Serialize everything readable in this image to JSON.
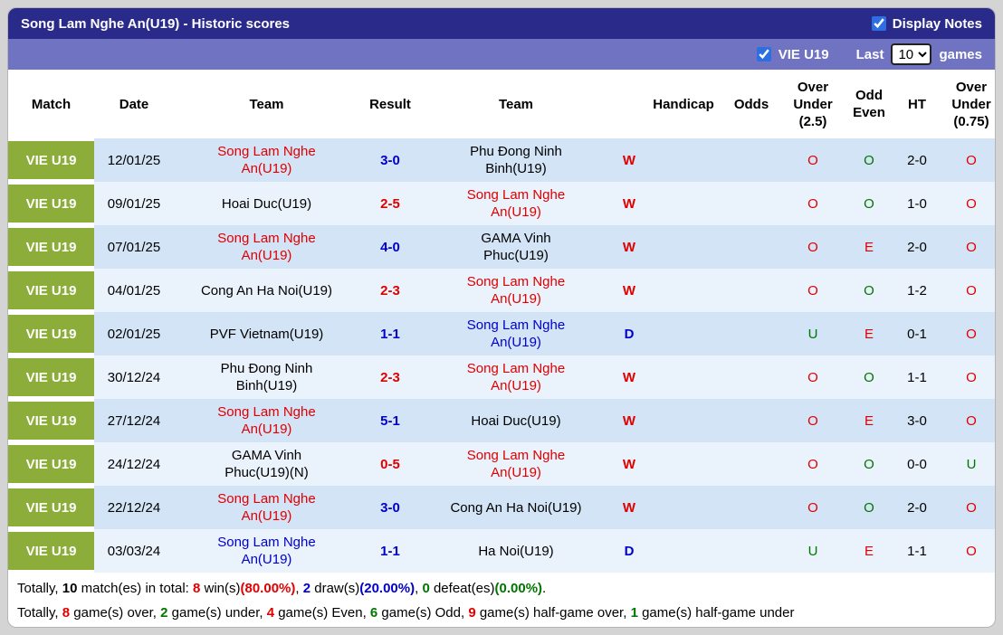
{
  "colors": {
    "header_bg": "#2a2a8a",
    "filter_bg": "#7073c2",
    "league_badge_bg": "#8cad3a",
    "row_odd_bg": "#d2e4f6",
    "row_even_bg": "#eaf2fc",
    "red": "#e00000",
    "blue": "#0000cd",
    "green": "#007500"
  },
  "title_bar": {
    "title": "Song Lam Nghe An(U19) - Historic scores",
    "display_notes": {
      "label": "Display Notes",
      "checked": true
    }
  },
  "filter_bar": {
    "league_filter": {
      "label": "VIE U19",
      "checked": true
    },
    "last_label": "Last",
    "games_select": {
      "value": "10",
      "options": [
        "10"
      ]
    },
    "games_label": "games"
  },
  "table": {
    "headers": {
      "match": "Match",
      "date": "Date",
      "home_team": "Team",
      "result": "Result",
      "away_team": "Team",
      "wd": "",
      "handicap": "Handicap",
      "odds": "Odds",
      "over_under_25": "Over Under (2.5)",
      "odd_even": "Odd Even",
      "ht": "HT",
      "over_under_075": "Over Under (0.75)"
    },
    "rows": [
      {
        "league": "VIE U19",
        "date": "12/01/25",
        "home": {
          "name": "Song Lam Nghe An(U19)",
          "color": "red"
        },
        "result": {
          "text": "3-0",
          "color": "blue"
        },
        "away": {
          "name": "Phu Đong Ninh Binh(U19)",
          "color": "black"
        },
        "wd": {
          "text": "W",
          "color": "red"
        },
        "handicap": "",
        "odds": "",
        "over_under_25": {
          "text": "O",
          "color": "red"
        },
        "odd_even": {
          "text": "O",
          "color": "green"
        },
        "ht": "2-0",
        "over_under_075": {
          "text": "O",
          "color": "red"
        }
      },
      {
        "league": "VIE U19",
        "date": "09/01/25",
        "home": {
          "name": "Hoai Duc(U19)",
          "color": "black"
        },
        "result": {
          "text": "2-5",
          "color": "red"
        },
        "away": {
          "name": "Song Lam Nghe An(U19)",
          "color": "red"
        },
        "wd": {
          "text": "W",
          "color": "red"
        },
        "handicap": "",
        "odds": "",
        "over_under_25": {
          "text": "O",
          "color": "red"
        },
        "odd_even": {
          "text": "O",
          "color": "green"
        },
        "ht": "1-0",
        "over_under_075": {
          "text": "O",
          "color": "red"
        }
      },
      {
        "league": "VIE U19",
        "date": "07/01/25",
        "home": {
          "name": "Song Lam Nghe An(U19)",
          "color": "red"
        },
        "result": {
          "text": "4-0",
          "color": "blue"
        },
        "away": {
          "name": "GAMA Vinh Phuc(U19)",
          "color": "black"
        },
        "wd": {
          "text": "W",
          "color": "red"
        },
        "handicap": "",
        "odds": "",
        "over_under_25": {
          "text": "O",
          "color": "red"
        },
        "odd_even": {
          "text": "E",
          "color": "red"
        },
        "ht": "2-0",
        "over_under_075": {
          "text": "O",
          "color": "red"
        }
      },
      {
        "league": "VIE U19",
        "date": "04/01/25",
        "home": {
          "name": "Cong An Ha Noi(U19)",
          "color": "black"
        },
        "result": {
          "text": "2-3",
          "color": "red"
        },
        "away": {
          "name": "Song Lam Nghe An(U19)",
          "color": "red"
        },
        "wd": {
          "text": "W",
          "color": "red"
        },
        "handicap": "",
        "odds": "",
        "over_under_25": {
          "text": "O",
          "color": "red"
        },
        "odd_even": {
          "text": "O",
          "color": "green"
        },
        "ht": "1-2",
        "over_under_075": {
          "text": "O",
          "color": "red"
        }
      },
      {
        "league": "VIE U19",
        "date": "02/01/25",
        "home": {
          "name": "PVF Vietnam(U19)",
          "color": "black"
        },
        "result": {
          "text": "1-1",
          "color": "blue"
        },
        "away": {
          "name": "Song Lam Nghe An(U19)",
          "color": "blue"
        },
        "wd": {
          "text": "D",
          "color": "blue"
        },
        "handicap": "",
        "odds": "",
        "over_under_25": {
          "text": "U",
          "color": "green"
        },
        "odd_even": {
          "text": "E",
          "color": "red"
        },
        "ht": "0-1",
        "over_under_075": {
          "text": "O",
          "color": "red"
        }
      },
      {
        "league": "VIE U19",
        "date": "30/12/24",
        "home": {
          "name": "Phu Đong Ninh Binh(U19)",
          "color": "black"
        },
        "result": {
          "text": "2-3",
          "color": "red"
        },
        "away": {
          "name": "Song Lam Nghe An(U19)",
          "color": "red"
        },
        "wd": {
          "text": "W",
          "color": "red"
        },
        "handicap": "",
        "odds": "",
        "over_under_25": {
          "text": "O",
          "color": "red"
        },
        "odd_even": {
          "text": "O",
          "color": "green"
        },
        "ht": "1-1",
        "over_under_075": {
          "text": "O",
          "color": "red"
        }
      },
      {
        "league": "VIE U19",
        "date": "27/12/24",
        "home": {
          "name": "Song Lam Nghe An(U19)",
          "color": "red"
        },
        "result": {
          "text": "5-1",
          "color": "blue"
        },
        "away": {
          "name": "Hoai Duc(U19)",
          "color": "black"
        },
        "wd": {
          "text": "W",
          "color": "red"
        },
        "handicap": "",
        "odds": "",
        "over_under_25": {
          "text": "O",
          "color": "red"
        },
        "odd_even": {
          "text": "E",
          "color": "red"
        },
        "ht": "3-0",
        "over_under_075": {
          "text": "O",
          "color": "red"
        }
      },
      {
        "league": "VIE U19",
        "date": "24/12/24",
        "home": {
          "name": "GAMA Vinh Phuc(U19)(N)",
          "color": "black"
        },
        "result": {
          "text": "0-5",
          "color": "red"
        },
        "away": {
          "name": "Song Lam Nghe An(U19)",
          "color": "red"
        },
        "wd": {
          "text": "W",
          "color": "red"
        },
        "handicap": "",
        "odds": "",
        "over_under_25": {
          "text": "O",
          "color": "red"
        },
        "odd_even": {
          "text": "O",
          "color": "green"
        },
        "ht": "0-0",
        "over_under_075": {
          "text": "U",
          "color": "green"
        }
      },
      {
        "league": "VIE U19",
        "date": "22/12/24",
        "home": {
          "name": "Song Lam Nghe An(U19)",
          "color": "red"
        },
        "result": {
          "text": "3-0",
          "color": "blue"
        },
        "away": {
          "name": "Cong An Ha Noi(U19)",
          "color": "black"
        },
        "wd": {
          "text": "W",
          "color": "red"
        },
        "handicap": "",
        "odds": "",
        "over_under_25": {
          "text": "O",
          "color": "red"
        },
        "odd_even": {
          "text": "O",
          "color": "green"
        },
        "ht": "2-0",
        "over_under_075": {
          "text": "O",
          "color": "red"
        }
      },
      {
        "league": "VIE U19",
        "date": "03/03/24",
        "home": {
          "name": "Song Lam Nghe An(U19)",
          "color": "blue"
        },
        "result": {
          "text": "1-1",
          "color": "blue"
        },
        "away": {
          "name": "Ha Noi(U19)",
          "color": "black"
        },
        "wd": {
          "text": "D",
          "color": "blue"
        },
        "handicap": "",
        "odds": "",
        "over_under_25": {
          "text": "U",
          "color": "green"
        },
        "odd_even": {
          "text": "E",
          "color": "red"
        },
        "ht": "1-1",
        "over_under_075": {
          "text": "O",
          "color": "red"
        }
      }
    ]
  },
  "summary": {
    "lines": [
      [
        {
          "text": "Totally, ",
          "color": "black",
          "bold": false
        },
        {
          "text": "10",
          "color": "black",
          "bold": true
        },
        {
          "text": " match(es) in total: ",
          "color": "black",
          "bold": false
        },
        {
          "text": "8",
          "color": "red",
          "bold": true
        },
        {
          "text": " win(s)",
          "color": "black",
          "bold": false
        },
        {
          "text": "(80.00%)",
          "color": "red",
          "bold": true
        },
        {
          "text": ", ",
          "color": "black",
          "bold": false
        },
        {
          "text": "2",
          "color": "blue",
          "bold": true
        },
        {
          "text": " draw(s)",
          "color": "black",
          "bold": false
        },
        {
          "text": "(20.00%)",
          "color": "blue",
          "bold": true
        },
        {
          "text": ", ",
          "color": "black",
          "bold": false
        },
        {
          "text": "0",
          "color": "green",
          "bold": true
        },
        {
          "text": " defeat(es)",
          "color": "black",
          "bold": false
        },
        {
          "text": "(0.00%)",
          "color": "green",
          "bold": true
        },
        {
          "text": ".",
          "color": "black",
          "bold": false
        }
      ],
      [
        {
          "text": "Totally, ",
          "color": "black",
          "bold": false
        },
        {
          "text": "8",
          "color": "red",
          "bold": true
        },
        {
          "text": " game(s) over, ",
          "color": "black",
          "bold": false
        },
        {
          "text": "2",
          "color": "green",
          "bold": true
        },
        {
          "text": " game(s) under, ",
          "color": "black",
          "bold": false
        },
        {
          "text": "4",
          "color": "red",
          "bold": true
        },
        {
          "text": " game(s) Even, ",
          "color": "black",
          "bold": false
        },
        {
          "text": "6",
          "color": "green",
          "bold": true
        },
        {
          "text": " game(s) Odd, ",
          "color": "black",
          "bold": false
        },
        {
          "text": "9",
          "color": "red",
          "bold": true
        },
        {
          "text": " game(s) half-game over, ",
          "color": "black",
          "bold": false
        },
        {
          "text": "1",
          "color": "green",
          "bold": true
        },
        {
          "text": " game(s) half-game under",
          "color": "black",
          "bold": false
        }
      ]
    ]
  }
}
